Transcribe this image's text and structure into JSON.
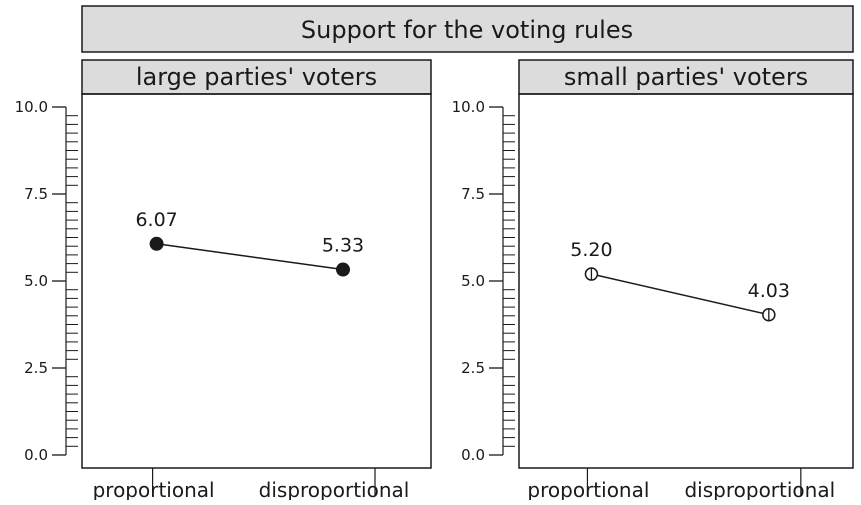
{
  "chart_data": {
    "type": "line",
    "title": "Support for the voting rules",
    "categories": [
      "proportional",
      "disproportional"
    ],
    "ylim": [
      0,
      10
    ],
    "yticks": [
      "0.0",
      "2.5",
      "5.0",
      "7.5",
      "10.0"
    ],
    "grid": false,
    "panels": [
      {
        "name": "large parties' voters",
        "marker": "filled-circle",
        "values": [
          6.07,
          5.33
        ],
        "labels": [
          "6.07",
          "5.33"
        ]
      },
      {
        "name": "small parties' voters",
        "marker": "open-circle",
        "values": [
          5.2,
          4.03
        ],
        "labels": [
          "5.20",
          "4.03"
        ]
      }
    ],
    "colors": {
      "strip": "#dcdcdc",
      "line": "#1a1a1a",
      "frame": "#1a1a1a"
    }
  }
}
